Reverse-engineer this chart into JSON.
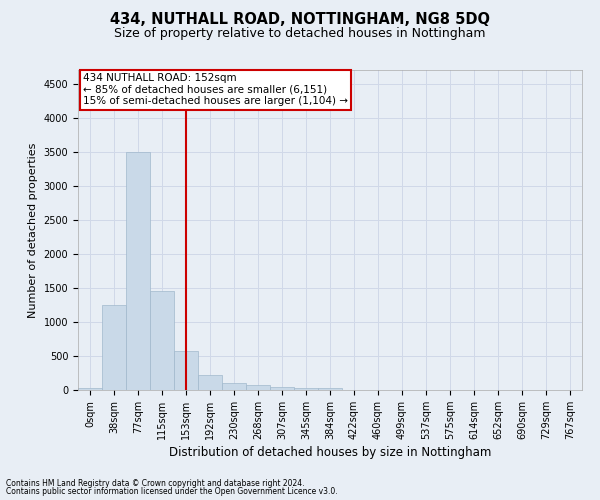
{
  "title1": "434, NUTHALL ROAD, NOTTINGHAM, NG8 5DQ",
  "title2": "Size of property relative to detached houses in Nottingham",
  "xlabel": "Distribution of detached houses by size in Nottingham",
  "ylabel": "Number of detached properties",
  "bar_labels": [
    "0sqm",
    "38sqm",
    "77sqm",
    "115sqm",
    "153sqm",
    "192sqm",
    "230sqm",
    "268sqm",
    "307sqm",
    "345sqm",
    "384sqm",
    "422sqm",
    "460sqm",
    "499sqm",
    "537sqm",
    "575sqm",
    "614sqm",
    "652sqm",
    "690sqm",
    "729sqm",
    "767sqm"
  ],
  "bar_values": [
    30,
    1250,
    3500,
    1460,
    570,
    220,
    110,
    75,
    50,
    25,
    30,
    0,
    0,
    0,
    0,
    0,
    0,
    0,
    0,
    0,
    0
  ],
  "bar_color": "#c9d9e8",
  "bar_edge_color": "#a0b8cc",
  "bar_width": 1.0,
  "ylim": [
    0,
    4700
  ],
  "yticks": [
    0,
    500,
    1000,
    1500,
    2000,
    2500,
    3000,
    3500,
    4000,
    4500
  ],
  "red_line_bin": 4,
  "annotation_line1": "434 NUTHALL ROAD: 152sqm",
  "annotation_line2": "← 85% of detached houses are smaller (6,151)",
  "annotation_line3": "15% of semi-detached houses are larger (1,104) →",
  "annotation_box_color": "#ffffff",
  "annotation_border_color": "#cc0000",
  "grid_color": "#d0d8e8",
  "background_color": "#e8eef5",
  "plot_bg_color": "#e8eef5",
  "footer1": "Contains HM Land Registry data © Crown copyright and database right 2024.",
  "footer2": "Contains public sector information licensed under the Open Government Licence v3.0.",
  "red_line_color": "#cc0000",
  "title1_fontsize": 10.5,
  "title2_fontsize": 9,
  "xlabel_fontsize": 8.5,
  "ylabel_fontsize": 8,
  "tick_fontsize": 7,
  "annot_fontsize": 7.5,
  "footer_fontsize": 5.5
}
